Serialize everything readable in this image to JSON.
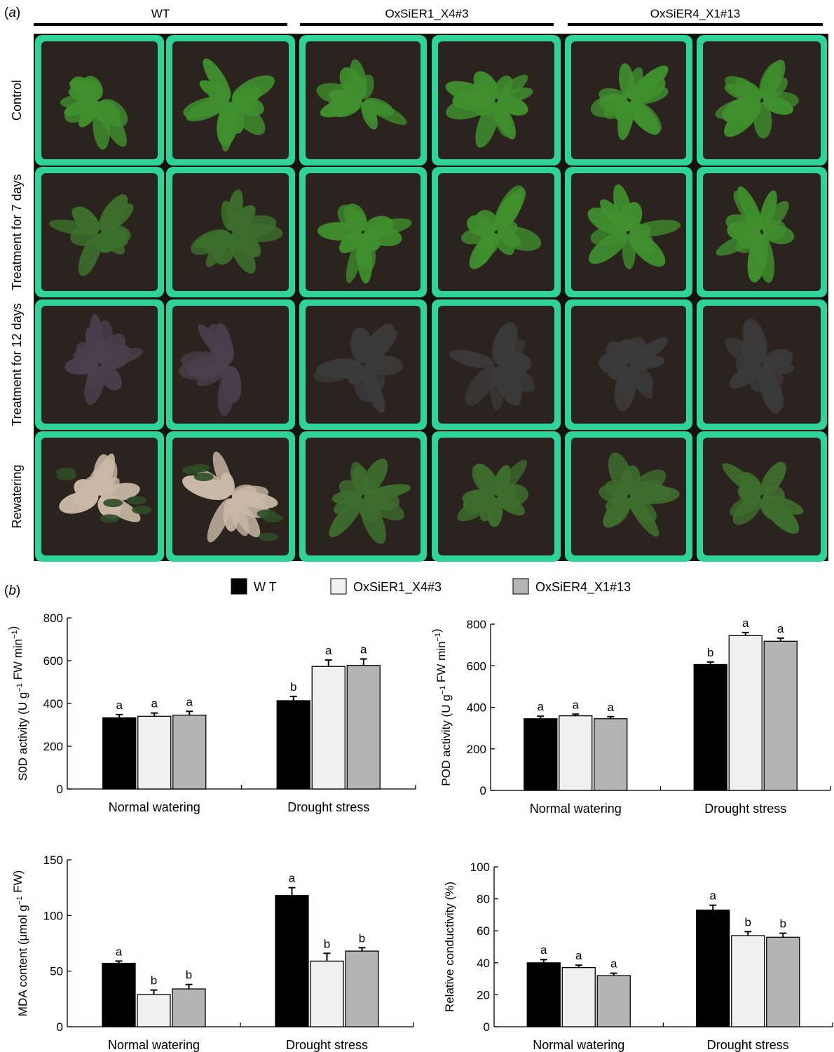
{
  "panel_a": {
    "label_prefix": "(",
    "label_letter": "a",
    "label_suffix": ")",
    "groups": [
      "WT",
      "OxSiER1_X4#3",
      "OxSiER4_X1#13"
    ],
    "rows": [
      "Control",
      "Treatment for 7 days",
      "Treatment for 12 days",
      "Rewatering"
    ],
    "colors": {
      "pot": "#2fd39a",
      "soil": "#2b241e",
      "leaf_healthy": "#3f8f2e",
      "leaf_stressed": "#3b3a3a",
      "leaf_dry": "#c9b9a6"
    }
  },
  "panel_b": {
    "label_prefix": "(",
    "label_letter": "b",
    "label_suffix": ")",
    "legend": [
      {
        "name": "W T",
        "color": "#000000"
      },
      {
        "name": "OxSiER1_X4#3",
        "color": "#f0f0f0"
      },
      {
        "name": "OxSiER4_X1#13",
        "color": "#b4b4b4"
      }
    ]
  },
  "chart_data": [
    {
      "type": "bar",
      "ylabel_main": "S0D activity (U g",
      "ylabel_sup1": "−1",
      "ylabel_mid": " FW min",
      "ylabel_sup2": "−1",
      "ylabel_end": ")",
      "ylim": [
        0,
        800
      ],
      "yticks": [
        "0",
        "200",
        "400",
        "600",
        "800"
      ],
      "categories": [
        "Normal watering",
        "Drought stress"
      ],
      "series": [
        {
          "color": "#000000",
          "values": [
            333,
            413
          ],
          "errors": [
            15,
            20
          ],
          "letters": [
            "a",
            "b"
          ]
        },
        {
          "color": "#f0f0f0",
          "values": [
            340,
            573
          ],
          "errors": [
            15,
            30
          ],
          "letters": [
            "a",
            "a"
          ]
        },
        {
          "color": "#b4b4b4",
          "values": [
            345,
            578
          ],
          "errors": [
            18,
            30
          ],
          "letters": [
            "a",
            "a"
          ]
        }
      ]
    },
    {
      "type": "bar",
      "ylabel_main": "POD activity (U g",
      "ylabel_sup1": "−1",
      "ylabel_mid": " FW min",
      "ylabel_sup2": "−1",
      "ylabel_end": ")",
      "ylim": [
        0,
        800
      ],
      "yticks": [
        "0",
        "200",
        "400",
        "600",
        "800"
      ],
      "categories": [
        "Normal watering",
        "Drought stress"
      ],
      "series": [
        {
          "color": "#000000",
          "values": [
            345,
            606
          ],
          "errors": [
            12,
            12
          ],
          "letters": [
            "a",
            "b"
          ]
        },
        {
          "color": "#f0f0f0",
          "values": [
            359,
            745
          ],
          "errors": [
            8,
            15
          ],
          "letters": [
            "a",
            "a"
          ]
        },
        {
          "color": "#b4b4b4",
          "values": [
            345,
            718
          ],
          "errors": [
            10,
            15
          ],
          "letters": [
            "a",
            "a"
          ]
        }
      ]
    },
    {
      "type": "bar",
      "ylabel_main": "MDA content (μmol g",
      "ylabel_sup1": "−1",
      "ylabel_mid": " FW)",
      "ylabel_sup2": "",
      "ylabel_end": "",
      "ylim": [
        0,
        150
      ],
      "yticks": [
        "0",
        "50",
        "100",
        "150"
      ],
      "categories": [
        "Normal watering",
        "Drought stress"
      ],
      "series": [
        {
          "color": "#000000",
          "values": [
            57,
            118
          ],
          "errors": [
            2,
            7
          ],
          "letters": [
            "a",
            "a"
          ]
        },
        {
          "color": "#f0f0f0",
          "values": [
            29,
            59
          ],
          "errors": [
            4,
            7
          ],
          "letters": [
            "b",
            "b"
          ]
        },
        {
          "color": "#b4b4b4",
          "values": [
            34,
            68
          ],
          "errors": [
            4,
            3
          ],
          "letters": [
            "b",
            "b"
          ]
        }
      ]
    },
    {
      "type": "bar",
      "ylabel_main": "Relative conductivity (%)",
      "ylabel_sup1": "",
      "ylabel_mid": "",
      "ylabel_sup2": "",
      "ylabel_end": "",
      "ylim": [
        0,
        100
      ],
      "yticks": [
        "0",
        "20",
        "40",
        "60",
        "80",
        "100"
      ],
      "categories": [
        "Normal watering",
        "Drought stress"
      ],
      "series": [
        {
          "color": "#000000",
          "values": [
            40,
            73
          ],
          "errors": [
            2,
            3
          ],
          "letters": [
            "a",
            "a"
          ]
        },
        {
          "color": "#f0f0f0",
          "values": [
            37,
            57
          ],
          "errors": [
            1.5,
            2.5
          ],
          "letters": [
            "a",
            "b"
          ]
        },
        {
          "color": "#b4b4b4",
          "values": [
            32,
            56
          ],
          "errors": [
            1.5,
            2.5
          ],
          "letters": [
            "a",
            "b"
          ]
        }
      ]
    }
  ]
}
